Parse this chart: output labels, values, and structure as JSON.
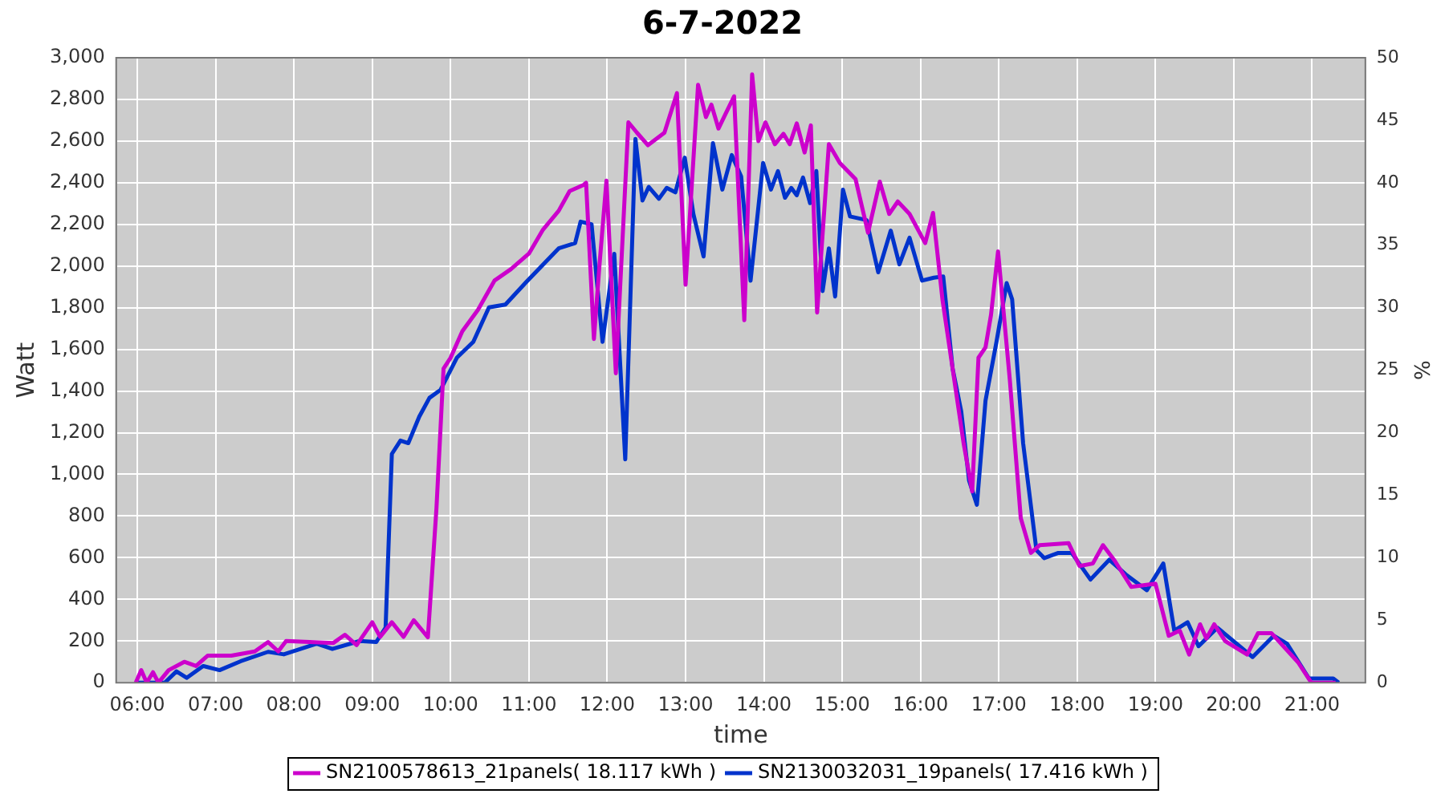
{
  "chart_data": {
    "type": "line",
    "title": "6-7-2022",
    "xlabel": "time",
    "ylabel": "Watt",
    "y2label": "%",
    "xlim": [
      5.73,
      21.68
    ],
    "xticks": [
      {
        "value": 6,
        "label": "06:00"
      },
      {
        "value": 7,
        "label": "07:00"
      },
      {
        "value": 8,
        "label": "08:00"
      },
      {
        "value": 9,
        "label": "09:00"
      },
      {
        "value": 10,
        "label": "10:00"
      },
      {
        "value": 11,
        "label": "11:00"
      },
      {
        "value": 12,
        "label": "12:00"
      },
      {
        "value": 13,
        "label": "13:00"
      },
      {
        "value": 14,
        "label": "14:00"
      },
      {
        "value": 15,
        "label": "15:00"
      },
      {
        "value": 16,
        "label": "16:00"
      },
      {
        "value": 17,
        "label": "17:00"
      },
      {
        "value": 18,
        "label": "18:00"
      },
      {
        "value": 19,
        "label": "19:00"
      },
      {
        "value": 20,
        "label": "20:00"
      },
      {
        "value": 21,
        "label": "21:00"
      }
    ],
    "ylim": [
      0,
      3000
    ],
    "yticks": [
      {
        "value": 0,
        "label": "0"
      },
      {
        "value": 200,
        "label": "200"
      },
      {
        "value": 400,
        "label": "400"
      },
      {
        "value": 600,
        "label": "600"
      },
      {
        "value": 800,
        "label": "800"
      },
      {
        "value": 1000,
        "label": "1,000"
      },
      {
        "value": 1200,
        "label": "1,200"
      },
      {
        "value": 1400,
        "label": "1,400"
      },
      {
        "value": 1600,
        "label": "1,600"
      },
      {
        "value": 1800,
        "label": "1,800"
      },
      {
        "value": 2000,
        "label": "2,000"
      },
      {
        "value": 2200,
        "label": "2,200"
      },
      {
        "value": 2400,
        "label": "2,400"
      },
      {
        "value": 2600,
        "label": "2,600"
      },
      {
        "value": 2800,
        "label": "2,800"
      },
      {
        "value": 3000,
        "label": "3,000"
      }
    ],
    "y2lim": [
      0,
      50
    ],
    "y2ticks": [
      0,
      5,
      10,
      15,
      20,
      25,
      30,
      35,
      40,
      45,
      50
    ],
    "grid": true,
    "legend": "bottom",
    "marker": "none",
    "line_style": "solid",
    "series": [
      {
        "name": "SN2100578613_21panels( 18.117 kWh )",
        "color": "#cc00cc",
        "x": [
          5.98,
          6.05,
          6.12,
          6.2,
          6.27,
          6.4,
          6.6,
          6.75,
          6.9,
          7.2,
          7.5,
          7.67,
          7.8,
          7.9,
          8.5,
          8.65,
          8.8,
          9.0,
          9.1,
          9.25,
          9.4,
          9.53,
          9.71,
          9.82,
          9.91,
          10.0,
          10.15,
          10.35,
          10.56,
          10.77,
          11.0,
          11.18,
          11.38,
          11.52,
          11.7,
          11.73,
          11.83,
          11.9,
          11.99,
          12.11,
          12.27,
          12.38,
          12.52,
          12.73,
          12.89,
          13.0,
          13.16,
          13.26,
          13.33,
          13.42,
          13.51,
          13.62,
          13.75,
          13.85,
          13.93,
          14.02,
          14.14,
          14.25,
          14.33,
          14.42,
          14.52,
          14.6,
          14.68,
          14.83,
          14.97,
          15.17,
          15.33,
          15.48,
          15.6,
          15.71,
          15.86,
          16.06,
          16.16,
          16.28,
          16.55,
          16.66,
          16.74,
          16.83,
          16.9,
          16.99,
          17.14,
          17.28,
          17.41,
          17.52,
          17.89,
          18.03,
          18.2,
          18.33,
          18.48,
          18.69,
          19.0,
          19.17,
          19.31,
          19.43,
          19.57,
          19.65,
          19.75,
          19.89,
          20.17,
          20.31,
          20.48,
          20.82,
          20.99,
          21.3
        ],
        "values": [
          0,
          60,
          0,
          50,
          0,
          60,
          100,
          80,
          130,
          130,
          150,
          195,
          150,
          200,
          190,
          230,
          180,
          290,
          220,
          290,
          220,
          300,
          218,
          840,
          1508,
          1560,
          1687,
          1790,
          1930,
          1985,
          2060,
          2175,
          2265,
          2360,
          2390,
          2400,
          1650,
          2000,
          2410,
          1485,
          2690,
          2640,
          2580,
          2640,
          2830,
          1910,
          2870,
          2715,
          2775,
          2660,
          2730,
          2815,
          1740,
          2920,
          2600,
          2690,
          2585,
          2635,
          2585,
          2685,
          2545,
          2675,
          1777,
          2585,
          2495,
          2418,
          2160,
          2405,
          2250,
          2310,
          2250,
          2110,
          2255,
          1840,
          1150,
          918,
          1560,
          1610,
          1765,
          2070,
          1455,
          790,
          623,
          660,
          670,
          560,
          572,
          660,
          585,
          460,
          475,
          225,
          250,
          135,
          280,
          212,
          280,
          200,
          135,
          238,
          238,
          98,
          0,
          0
        ]
      },
      {
        "name": "SN2130032031_19panels( 17.416 kWh )",
        "color": "#0033cc",
        "x": [
          6.0,
          6.35,
          6.5,
          6.63,
          6.84,
          7.05,
          7.32,
          7.67,
          7.87,
          8.29,
          8.49,
          8.84,
          9.05,
          9.17,
          9.25,
          9.36,
          9.46,
          9.6,
          9.73,
          9.87,
          10.08,
          10.29,
          10.49,
          10.7,
          10.97,
          11.38,
          11.59,
          11.66,
          11.8,
          11.94,
          12.09,
          12.23,
          12.36,
          12.45,
          12.53,
          12.66,
          12.76,
          12.87,
          12.99,
          13.1,
          13.23,
          13.35,
          13.47,
          13.59,
          13.71,
          13.83,
          13.99,
          14.09,
          14.18,
          14.27,
          14.35,
          14.42,
          14.5,
          14.59,
          14.67,
          14.75,
          14.83,
          14.91,
          15.01,
          15.1,
          15.31,
          15.46,
          15.62,
          15.73,
          15.86,
          16.02,
          16.17,
          16.29,
          16.41,
          16.52,
          16.62,
          16.72,
          16.83,
          16.97,
          17.1,
          17.17,
          17.31,
          17.48,
          17.58,
          17.76,
          17.93,
          18.17,
          18.41,
          18.62,
          18.89,
          19.1,
          19.24,
          19.41,
          19.55,
          19.79,
          20.24,
          20.51,
          20.68,
          20.96,
          21.1,
          21.27,
          21.34
        ],
        "values": [
          0,
          0,
          54,
          23,
          80,
          60,
          103,
          148,
          136,
          187,
          162,
          200,
          195,
          264,
          1098,
          1162,
          1150,
          1277,
          1367,
          1405,
          1560,
          1636,
          1802,
          1815,
          1925,
          2085,
          2110,
          2213,
          2200,
          1636,
          2059,
          1072,
          2610,
          2315,
          2380,
          2323,
          2375,
          2354,
          2520,
          2250,
          2046,
          2590,
          2367,
          2533,
          2430,
          1930,
          2495,
          2367,
          2456,
          2328,
          2375,
          2340,
          2425,
          2302,
          2456,
          1880,
          2085,
          1854,
          2367,
          2238,
          2221,
          1970,
          2170,
          2008,
          2136,
          1930,
          1944,
          1950,
          1508,
          1302,
          970,
          854,
          1354,
          1636,
          1918,
          1840,
          1150,
          636,
          598,
          623,
          623,
          495,
          590,
          520,
          444,
          572,
          250,
          290,
          175,
          264,
          123,
          225,
          187,
          20,
          20,
          20,
          0
        ]
      }
    ]
  }
}
